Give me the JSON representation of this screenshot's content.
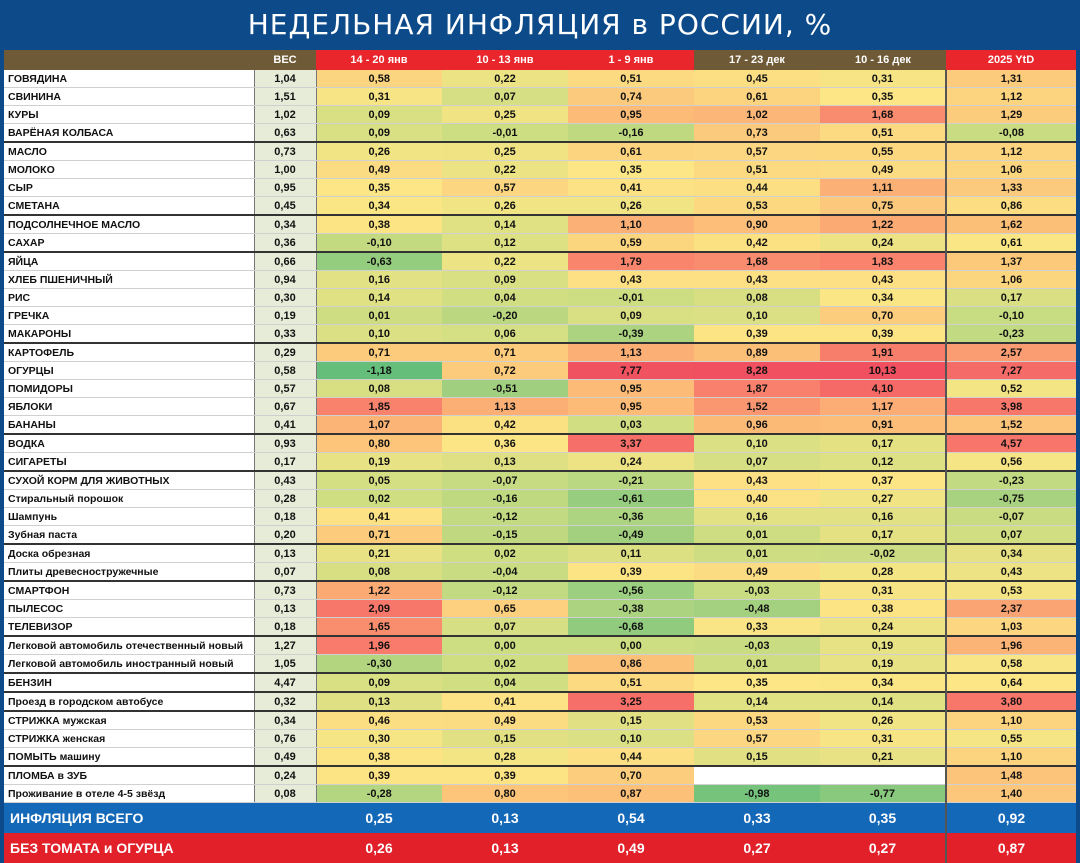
{
  "title": "НЕДЕЛЬНАЯ ИНФЛЯЦИЯ в РОССИИ, %",
  "colors": {
    "background": "#0d4a8a",
    "header_brown": "#6e5a36",
    "header_red": "#e8262c",
    "total_blue": "#1468b8",
    "total_red": "#e2202a"
  },
  "chart_data": {
    "type": "table",
    "title": "НЕДЕЛЬНАЯ ИНФЛЯЦИЯ в РОССИИ, %",
    "columns": [
      "",
      "ВЕС",
      "14 - 20 янв",
      "10 - 13 янв",
      "1 - 9 янв",
      "17 - 23 дек",
      "10 - 16 дек",
      "2025 YtD"
    ],
    "rows": [
      {
        "name": "ГОВЯДИНА",
        "weight": "1,04",
        "values": [
          "0,58",
          "0,22",
          "0,51",
          "0,45",
          "0,31"
        ],
        "ytd": "1,31",
        "sep": true
      },
      {
        "name": "СВИНИНА",
        "weight": "1,51",
        "values": [
          "0,31",
          "0,07",
          "0,74",
          "0,61",
          "0,35"
        ],
        "ytd": "1,12"
      },
      {
        "name": "КУРЫ",
        "weight": "1,02",
        "values": [
          "0,09",
          "0,25",
          "0,95",
          "1,02",
          "1,68"
        ],
        "ytd": "1,29"
      },
      {
        "name": "ВАРЁНАЯ КОЛБАСА",
        "weight": "0,63",
        "values": [
          "0,09",
          "-0,01",
          "-0,16",
          "0,73",
          "0,51"
        ],
        "ytd": "-0,08"
      },
      {
        "name": "МАСЛО",
        "weight": "0,73",
        "values": [
          "0,26",
          "0,25",
          "0,61",
          "0,57",
          "0,55"
        ],
        "ytd": "1,12",
        "sep": true
      },
      {
        "name": "МОЛОКО",
        "weight": "1,00",
        "values": [
          "0,49",
          "0,22",
          "0,35",
          "0,51",
          "0,49"
        ],
        "ytd": "1,06"
      },
      {
        "name": "СЫР",
        "weight": "0,95",
        "values": [
          "0,35",
          "0,57",
          "0,41",
          "0,44",
          "1,11"
        ],
        "ytd": "1,33"
      },
      {
        "name": "СМЕТАНА",
        "weight": "0,45",
        "values": [
          "0,34",
          "0,26",
          "0,26",
          "0,53",
          "0,75"
        ],
        "ytd": "0,86"
      },
      {
        "name": "ПОДСОЛНЕЧНОЕ МАСЛО",
        "weight": "0,34",
        "values": [
          "0,38",
          "0,14",
          "1,10",
          "0,90",
          "1,22"
        ],
        "ytd": "1,62",
        "sep": true
      },
      {
        "name": "САХАР",
        "weight": "0,36",
        "values": [
          "-0,10",
          "0,12",
          "0,59",
          "0,42",
          "0,24"
        ],
        "ytd": "0,61"
      },
      {
        "name": "ЯЙЦА",
        "weight": "0,66",
        "values": [
          "-0,63",
          "0,22",
          "1,79",
          "1,68",
          "1,83"
        ],
        "ytd": "1,37",
        "sep": true
      },
      {
        "name": "ХЛЕБ ПШЕНИЧНЫЙ",
        "weight": "0,94",
        "values": [
          "0,16",
          "0,09",
          "0,43",
          "0,43",
          "0,43"
        ],
        "ytd": "1,06"
      },
      {
        "name": "РИС",
        "weight": "0,30",
        "values": [
          "0,14",
          "0,04",
          "-0,01",
          "0,08",
          "0,34"
        ],
        "ytd": "0,17"
      },
      {
        "name": "ГРЕЧКА",
        "weight": "0,19",
        "values": [
          "0,01",
          "-0,20",
          "0,09",
          "0,10",
          "0,70"
        ],
        "ytd": "-0,10"
      },
      {
        "name": "МАКАРОНЫ",
        "weight": "0,33",
        "values": [
          "0,10",
          "0,06",
          "-0,39",
          "0,39",
          "0,39"
        ],
        "ytd": "-0,23"
      },
      {
        "name": "КАРТОФЕЛЬ",
        "weight": "0,29",
        "values": [
          "0,71",
          "0,71",
          "1,13",
          "0,89",
          "1,91"
        ],
        "ytd": "2,57",
        "sep": true
      },
      {
        "name": "ОГУРЦЫ",
        "weight": "0,58",
        "values": [
          "-1,18",
          "0,72",
          "7,77",
          "8,28",
          "10,13"
        ],
        "ytd": "7,27"
      },
      {
        "name": "ПОМИДОРЫ",
        "weight": "0,57",
        "values": [
          "0,08",
          "-0,51",
          "0,95",
          "1,87",
          "4,10"
        ],
        "ytd": "0,52"
      },
      {
        "name": "ЯБЛОКИ",
        "weight": "0,67",
        "values": [
          "1,85",
          "1,13",
          "0,95",
          "1,52",
          "1,17"
        ],
        "ytd": "3,98"
      },
      {
        "name": "БАНАНЫ",
        "weight": "0,41",
        "values": [
          "1,07",
          "0,42",
          "0,03",
          "0,96",
          "0,91"
        ],
        "ytd": "1,52"
      },
      {
        "name": "ВОДКА",
        "weight": "0,93",
        "values": [
          "0,80",
          "0,36",
          "3,37",
          "0,10",
          "0,17"
        ],
        "ytd": "4,57",
        "sep": true
      },
      {
        "name": "СИГАРЕТЫ",
        "weight": "0,17",
        "values": [
          "0,19",
          "0,13",
          "0,24",
          "0,07",
          "0,12"
        ],
        "ytd": "0,56"
      },
      {
        "name": "СУХОЙ КОРМ ДЛЯ ЖИВОТНЫХ",
        "weight": "0,43",
        "values": [
          "0,05",
          "-0,07",
          "-0,21",
          "0,43",
          "0,37"
        ],
        "ytd": "-0,23",
        "sep": true
      },
      {
        "name": "Стиральный порошок",
        "weight": "0,28",
        "values": [
          "0,02",
          "-0,16",
          "-0,61",
          "0,40",
          "0,27"
        ],
        "ytd": "-0,75"
      },
      {
        "name": "Шампунь",
        "weight": "0,18",
        "values": [
          "0,41",
          "-0,12",
          "-0,36",
          "0,16",
          "0,16"
        ],
        "ytd": "-0,07"
      },
      {
        "name": "Зубная паста",
        "weight": "0,20",
        "values": [
          "0,71",
          "-0,15",
          "-0,49",
          "0,01",
          "0,17"
        ],
        "ytd": "0,07"
      },
      {
        "name": "Доска обрезная",
        "weight": "0,13",
        "values": [
          "0,21",
          "0,02",
          "0,11",
          "0,01",
          "-0,02"
        ],
        "ytd": "0,34",
        "sep": true
      },
      {
        "name": "Плиты древесностружечные",
        "weight": "0,07",
        "values": [
          "0,08",
          "-0,04",
          "0,39",
          "0,49",
          "0,28"
        ],
        "ytd": "0,43"
      },
      {
        "name": "СМАРТФОН",
        "weight": "0,73",
        "values": [
          "1,22",
          "-0,12",
          "-0,56",
          "-0,03",
          "0,31"
        ],
        "ytd": "0,53",
        "sep": true
      },
      {
        "name": "ПЫЛЕСОС",
        "weight": "0,13",
        "values": [
          "2,09",
          "0,65",
          "-0,38",
          "-0,48",
          "0,38"
        ],
        "ytd": "2,37"
      },
      {
        "name": "ТЕЛЕВИЗОР",
        "weight": "0,18",
        "values": [
          "1,65",
          "0,07",
          "-0,68",
          "0,33",
          "0,24"
        ],
        "ytd": "1,03"
      },
      {
        "name": "Легковой автомобиль отечественный новый",
        "weight": "1,27",
        "values": [
          "1,96",
          "0,00",
          "0,00",
          "-0,03",
          "0,19"
        ],
        "ytd": "1,96",
        "sep": true
      },
      {
        "name": "Легковой автомобиль иностранный новый",
        "weight": "1,05",
        "values": [
          "-0,30",
          "0,02",
          "0,86",
          "0,01",
          "0,19"
        ],
        "ytd": "0,58"
      },
      {
        "name": "БЕНЗИН",
        "weight": "4,47",
        "values": [
          "0,09",
          "0,04",
          "0,51",
          "0,35",
          "0,34"
        ],
        "ytd": "0,64",
        "sep": true
      },
      {
        "name": "Проезд в городском автобусе",
        "weight": "0,32",
        "values": [
          "0,13",
          "0,41",
          "3,25",
          "0,14",
          "0,14"
        ],
        "ytd": "3,80",
        "sep": true
      },
      {
        "name": "СТРИЖКА мужская",
        "weight": "0,34",
        "values": [
          "0,46",
          "0,49",
          "0,15",
          "0,53",
          "0,26"
        ],
        "ytd": "1,10",
        "sep": true
      },
      {
        "name": "СТРИЖКА женская",
        "weight": "0,76",
        "values": [
          "0,30",
          "0,15",
          "0,10",
          "0,57",
          "0,31"
        ],
        "ytd": "0,55"
      },
      {
        "name": "ПОМЫТЬ машину",
        "weight": "0,49",
        "values": [
          "0,38",
          "0,28",
          "0,44",
          "0,15",
          "0,21"
        ],
        "ytd": "1,10"
      },
      {
        "name": "ПЛОМБА в ЗУБ",
        "weight": "0,24",
        "values": [
          "0,39",
          "0,39",
          "0,70",
          "",
          ""
        ],
        "ytd": "1,48",
        "sep": true
      },
      {
        "name": "Проживание в отеле 4-5 звёзд",
        "weight": "0,08",
        "values": [
          "-0,28",
          "0,80",
          "0,87",
          "-0,98",
          "-0,77"
        ],
        "ytd": "1,40"
      }
    ],
    "totals": [
      {
        "name": "ИНФЛЯЦИЯ ВСЕГО",
        "values": [
          "0,25",
          "0,13",
          "0,54",
          "0,33",
          "0,35"
        ],
        "ytd": "0,92"
      },
      {
        "name": "БЕЗ ТОМАТА и ОГУРЦА",
        "values": [
          "0,26",
          "0,13",
          "0,49",
          "0,27",
          "0,27"
        ],
        "ytd": "0,87"
      }
    ]
  }
}
